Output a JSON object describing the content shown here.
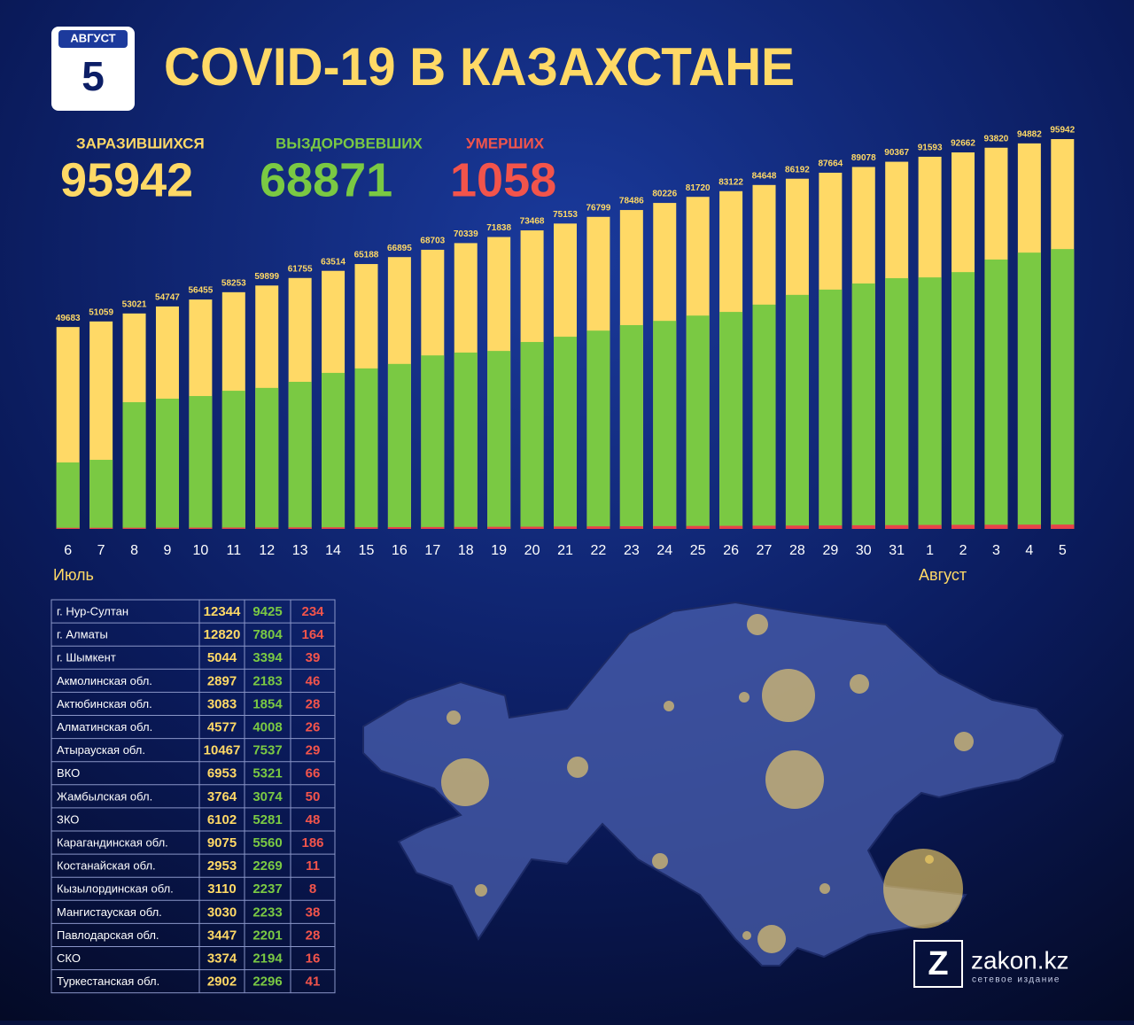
{
  "header": {
    "month": "АВГУСТ",
    "day": "5",
    "title": "COVID-19 В КАЗАХСТАНЕ"
  },
  "stats": [
    {
      "label": "ЗАРАЗИВШИХСЯ",
      "value": 95942,
      "color": "#ffd966"
    },
    {
      "label": "ВЫЗДОРОВЕВШИХ",
      "value": 68871,
      "color": "#7ac943"
    },
    {
      "label": "УМЕРШИХ",
      "value": 1058,
      "color": "#f2544b"
    }
  ],
  "chart_data": {
    "type": "bar",
    "categories": [
      "6",
      "7",
      "8",
      "9",
      "10",
      "11",
      "12",
      "13",
      "14",
      "15",
      "16",
      "17",
      "18",
      "19",
      "20",
      "21",
      "22",
      "23",
      "24",
      "25",
      "26",
      "27",
      "28",
      "29",
      "30",
      "31",
      "1",
      "2",
      "3",
      "4",
      "5"
    ],
    "period_labels": [
      "Июль",
      "Август"
    ],
    "series": [
      {
        "color": "#ffd966",
        "values": [
          49683,
          51059,
          53021,
          54747,
          56455,
          58253,
          59899,
          61755,
          63514,
          65188,
          66895,
          68703,
          70339,
          71838,
          73468,
          75153,
          76799,
          78486,
          80226,
          81720,
          83122,
          84648,
          86192,
          87664,
          89078,
          90367,
          91593,
          92662,
          93820,
          94882,
          95942
        ]
      },
      {
        "color": "#7ac943",
        "values": [
          16350,
          17000,
          31180,
          32050,
          32700,
          34000,
          34700,
          36200,
          38400,
          39500,
          40600,
          42700,
          43400,
          43800,
          46000,
          47300,
          48800,
          50150,
          51200,
          52500,
          53400,
          55200,
          57600,
          58900,
          60400,
          61700,
          61900,
          63200,
          66300,
          68000,
          68871
        ]
      },
      {
        "color": "#e8424a",
        "values": [
          264,
          275,
          290,
          302,
          315,
          335,
          350,
          375,
          395,
          410,
          430,
          460,
          480,
          510,
          540,
          585,
          620,
          650,
          680,
          720,
          745,
          790,
          820,
          855,
          890,
          925,
          965,
          995,
          1018,
          1040,
          1058
        ]
      }
    ]
  },
  "table": {
    "colors": [
      "#ffffff",
      "#ffd966",
      "#7ac943",
      "#f2544b"
    ],
    "rows": [
      [
        "г. Нур-Султан",
        12344,
        9425,
        234
      ],
      [
        "г. Алматы",
        12820,
        7804,
        164
      ],
      [
        "г. Шымкент",
        5044,
        3394,
        39
      ],
      [
        "Акмолинская обл.",
        2897,
        2183,
        46
      ],
      [
        "Актюбинская обл.",
        3083,
        1854,
        28
      ],
      [
        "Алматинская обл.",
        4577,
        4008,
        26
      ],
      [
        "Атырауская обл.",
        10467,
        7537,
        29
      ],
      [
        "ВКО",
        6953,
        5321,
        66
      ],
      [
        "Жамбылская обл.",
        3764,
        3074,
        50
      ],
      [
        "ЗКО",
        6102,
        5281,
        48
      ],
      [
        "Карагандинская обл.",
        9075,
        5560,
        186
      ],
      [
        "Костанайская обл.",
        2953,
        2269,
        11
      ],
      [
        "Кызылординская обл.",
        3110,
        2237,
        8
      ],
      [
        "Мангистауская обл.",
        3030,
        2233,
        38
      ],
      [
        "Павлодарская обл.",
        3447,
        2201,
        28
      ],
      [
        "СКО",
        3374,
        2194,
        16
      ],
      [
        "Туркестанская обл.",
        2902,
        2296,
        41
      ]
    ]
  },
  "logo": {
    "mark": "Z",
    "name": "zakon.kz",
    "tagline": "сетевое издание"
  }
}
